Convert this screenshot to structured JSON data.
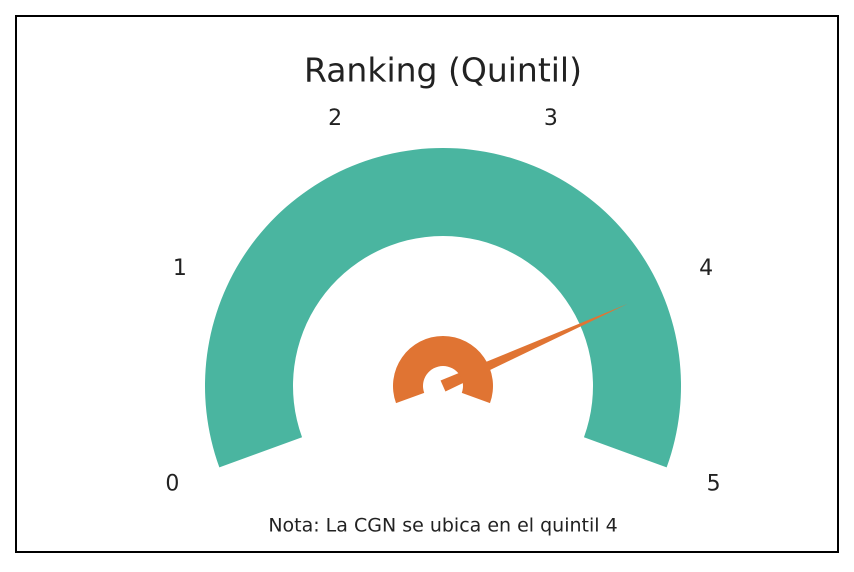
{
  "chart_data": {
    "type": "gauge",
    "title": "Ranking (Quintil)",
    "ylim": [
      0,
      5
    ],
    "yticks": [
      0,
      1,
      2,
      3,
      4,
      5
    ],
    "value": 4,
    "note": "Nota: La CGN se ubica en el quintil 4",
    "color": "#4ab5a0",
    "needle_color": "#e07433"
  }
}
